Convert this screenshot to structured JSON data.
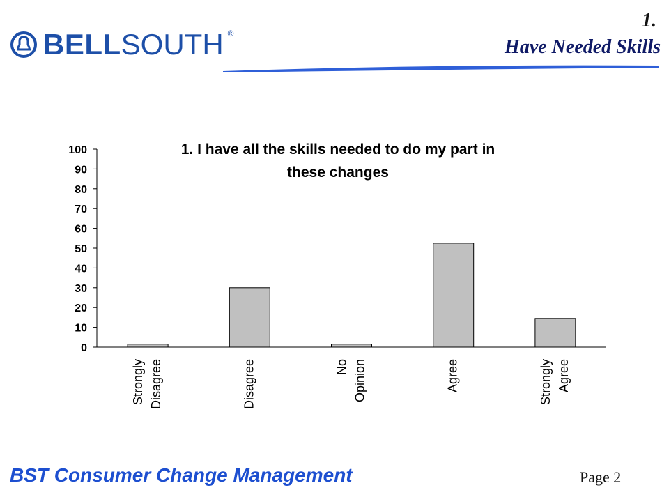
{
  "header": {
    "logo_bell": "BELL",
    "logo_south": "SOUTH",
    "logo_reg": "®",
    "slide_number": "1.",
    "slide_title": "Have Needed Skills"
  },
  "colors": {
    "brand_blue": "#1d4fa8",
    "footer_blue": "#1d4fd0",
    "bar_fill": "#c0c0c0",
    "bar_stroke": "#000000"
  },
  "chart_data": {
    "type": "bar",
    "title_lines": [
      "1. I have all the skills needed to do my part in",
      "these changes"
    ],
    "categories": [
      [
        "Strongly",
        "Disagree"
      ],
      [
        "Disagree"
      ],
      [
        "No",
        "Opinion"
      ],
      [
        "Agree"
      ],
      [
        "Strongly",
        "Agree"
      ]
    ],
    "values": [
      1.5,
      30,
      1.5,
      52.5,
      14.5
    ],
    "ylim": [
      0,
      100
    ],
    "yticks": [
      "0",
      "10",
      "20",
      "30",
      "40",
      "50",
      "60",
      "70",
      "80",
      "90",
      "100"
    ],
    "grid": false,
    "xlabel": "",
    "ylabel": ""
  },
  "footer": {
    "left": "BST Consumer Change Management",
    "right": "Page 2"
  }
}
